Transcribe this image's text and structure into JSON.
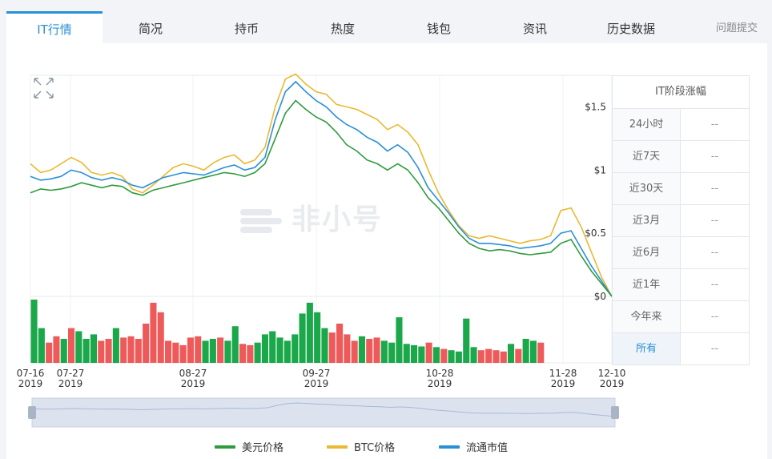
{
  "tabs": [
    {
      "label": "IT行情",
      "active": true
    },
    {
      "label": "简况"
    },
    {
      "label": "持币"
    },
    {
      "label": "热度"
    },
    {
      "label": "钱包"
    },
    {
      "label": "资讯"
    },
    {
      "label": "历史数据"
    }
  ],
  "feedback_link": "问题提交",
  "watermark": "非小号",
  "side_table": {
    "title": "IT阶段涨幅",
    "rows": [
      {
        "label": "24小时",
        "value": "--"
      },
      {
        "label": "近7天",
        "value": "--"
      },
      {
        "label": "近30天",
        "value": "--"
      },
      {
        "label": "近3月",
        "value": "--"
      },
      {
        "label": "近6月",
        "value": "--"
      },
      {
        "label": "近1年",
        "value": "--"
      },
      {
        "label": "今年来",
        "value": "--"
      },
      {
        "label": "所有",
        "value": "--",
        "active": true
      }
    ]
  },
  "colors": {
    "usd": "#2e9b3e",
    "btc": "#e9b931",
    "mcap": "#2b8fd6",
    "vol_up": "#1aa84a",
    "vol_down": "#ee5a5a",
    "accent": "#2b8fd6"
  },
  "chart_data": {
    "type": "line",
    "y_axis": {
      "ticks": [
        "$1.5",
        "$1",
        "$0.5",
        "$0"
      ],
      "range": [
        0,
        1.75
      ]
    },
    "x_labels": [
      {
        "date": "07-16",
        "year": "2019"
      },
      {
        "date": "07-27",
        "year": "2019"
      },
      {
        "date": "08-27",
        "year": "2019"
      },
      {
        "date": "09-27",
        "year": "2019"
      },
      {
        "date": "10-28",
        "year": "2019"
      },
      {
        "date": "11-28",
        "year": "2019"
      },
      {
        "date": "12-10",
        "year": "2019"
      }
    ],
    "series": [
      {
        "name": "美元价格",
        "key": "usd",
        "values": [
          0.82,
          0.85,
          0.84,
          0.85,
          0.87,
          0.9,
          0.88,
          0.86,
          0.88,
          0.87,
          0.82,
          0.8,
          0.84,
          0.86,
          0.88,
          0.9,
          0.92,
          0.94,
          0.96,
          0.98,
          0.97,
          0.95,
          0.98,
          1.05,
          1.25,
          1.45,
          1.55,
          1.48,
          1.42,
          1.38,
          1.3,
          1.2,
          1.15,
          1.08,
          1.05,
          1.0,
          1.05,
          1.0,
          0.9,
          0.78,
          0.7,
          0.6,
          0.5,
          0.42,
          0.38,
          0.36,
          0.37,
          0.36,
          0.34,
          0.33,
          0.34,
          0.35,
          0.42,
          0.45,
          0.32,
          0.2,
          0.1,
          0.0
        ]
      },
      {
        "name": "BTC价格",
        "key": "btc",
        "values": [
          1.05,
          0.98,
          1.0,
          1.05,
          1.1,
          1.06,
          0.98,
          0.96,
          0.98,
          0.95,
          0.85,
          0.82,
          0.88,
          0.95,
          1.02,
          1.05,
          1.03,
          1.0,
          1.06,
          1.1,
          1.12,
          1.05,
          1.08,
          1.18,
          1.5,
          1.72,
          1.76,
          1.68,
          1.62,
          1.6,
          1.52,
          1.5,
          1.48,
          1.44,
          1.4,
          1.32,
          1.36,
          1.3,
          1.2,
          1.0,
          0.82,
          0.68,
          0.56,
          0.48,
          0.46,
          0.48,
          0.46,
          0.44,
          0.42,
          0.44,
          0.45,
          0.48,
          0.68,
          0.7,
          0.55,
          0.35,
          0.15,
          0.0
        ]
      },
      {
        "name": "流通市值",
        "key": "mcap",
        "values": [
          0.95,
          0.92,
          0.93,
          0.95,
          1.0,
          0.98,
          0.94,
          0.92,
          0.94,
          0.92,
          0.88,
          0.86,
          0.9,
          0.94,
          0.96,
          0.98,
          0.97,
          0.96,
          0.99,
          1.02,
          1.04,
          1.0,
          1.02,
          1.1,
          1.4,
          1.62,
          1.7,
          1.62,
          1.55,
          1.5,
          1.42,
          1.36,
          1.32,
          1.26,
          1.22,
          1.15,
          1.2,
          1.14,
          1.02,
          0.86,
          0.76,
          0.66,
          0.55,
          0.46,
          0.42,
          0.42,
          0.41,
          0.4,
          0.38,
          0.39,
          0.4,
          0.42,
          0.5,
          0.52,
          0.38,
          0.24,
          0.12,
          0.0
        ]
      }
    ],
    "volume": [
      [
        1.0,
        1
      ],
      [
        0.55,
        1
      ],
      [
        0.32,
        0
      ],
      [
        0.42,
        0
      ],
      [
        0.38,
        1
      ],
      [
        0.55,
        0
      ],
      [
        0.5,
        1
      ],
      [
        0.38,
        1
      ],
      [
        0.45,
        1
      ],
      [
        0.35,
        0
      ],
      [
        0.38,
        0
      ],
      [
        0.55,
        1
      ],
      [
        0.4,
        0
      ],
      [
        0.42,
        0
      ],
      [
        0.38,
        0
      ],
      [
        0.62,
        0
      ],
      [
        0.95,
        0
      ],
      [
        0.8,
        0
      ],
      [
        0.35,
        0
      ],
      [
        0.32,
        0
      ],
      [
        0.28,
        0
      ],
      [
        0.4,
        0
      ],
      [
        0.42,
        0
      ],
      [
        0.35,
        1
      ],
      [
        0.38,
        1
      ],
      [
        0.4,
        0
      ],
      [
        0.35,
        1
      ],
      [
        0.58,
        1
      ],
      [
        0.3,
        0
      ],
      [
        0.28,
        0
      ],
      [
        0.32,
        1
      ],
      [
        0.45,
        1
      ],
      [
        0.5,
        1
      ],
      [
        0.4,
        1
      ],
      [
        0.35,
        1
      ],
      [
        0.45,
        1
      ],
      [
        0.78,
        1
      ],
      [
        0.95,
        1
      ],
      [
        0.8,
        1
      ],
      [
        0.55,
        1
      ],
      [
        0.48,
        0
      ],
      [
        0.62,
        0
      ],
      [
        0.45,
        0
      ],
      [
        0.35,
        0
      ],
      [
        0.42,
        1
      ],
      [
        0.38,
        0
      ],
      [
        0.4,
        0
      ],
      [
        0.35,
        1
      ],
      [
        0.32,
        1
      ],
      [
        0.72,
        1
      ],
      [
        0.3,
        1
      ],
      [
        0.28,
        1
      ],
      [
        0.26,
        1
      ],
      [
        0.32,
        0
      ],
      [
        0.25,
        1
      ],
      [
        0.22,
        0
      ],
      [
        0.2,
        1
      ],
      [
        0.18,
        1
      ],
      [
        0.7,
        1
      ],
      [
        0.25,
        1
      ],
      [
        0.2,
        0
      ],
      [
        0.22,
        0
      ],
      [
        0.2,
        0
      ],
      [
        0.18,
        0
      ],
      [
        0.3,
        1
      ],
      [
        0.22,
        0
      ],
      [
        0.38,
        1
      ],
      [
        0.35,
        1
      ],
      [
        0.32,
        0
      ]
    ]
  },
  "legend": [
    {
      "label": "美元价格",
      "key": "usd"
    },
    {
      "label": "BTC价格",
      "key": "btc"
    },
    {
      "label": "流通市值",
      "key": "mcap"
    }
  ]
}
